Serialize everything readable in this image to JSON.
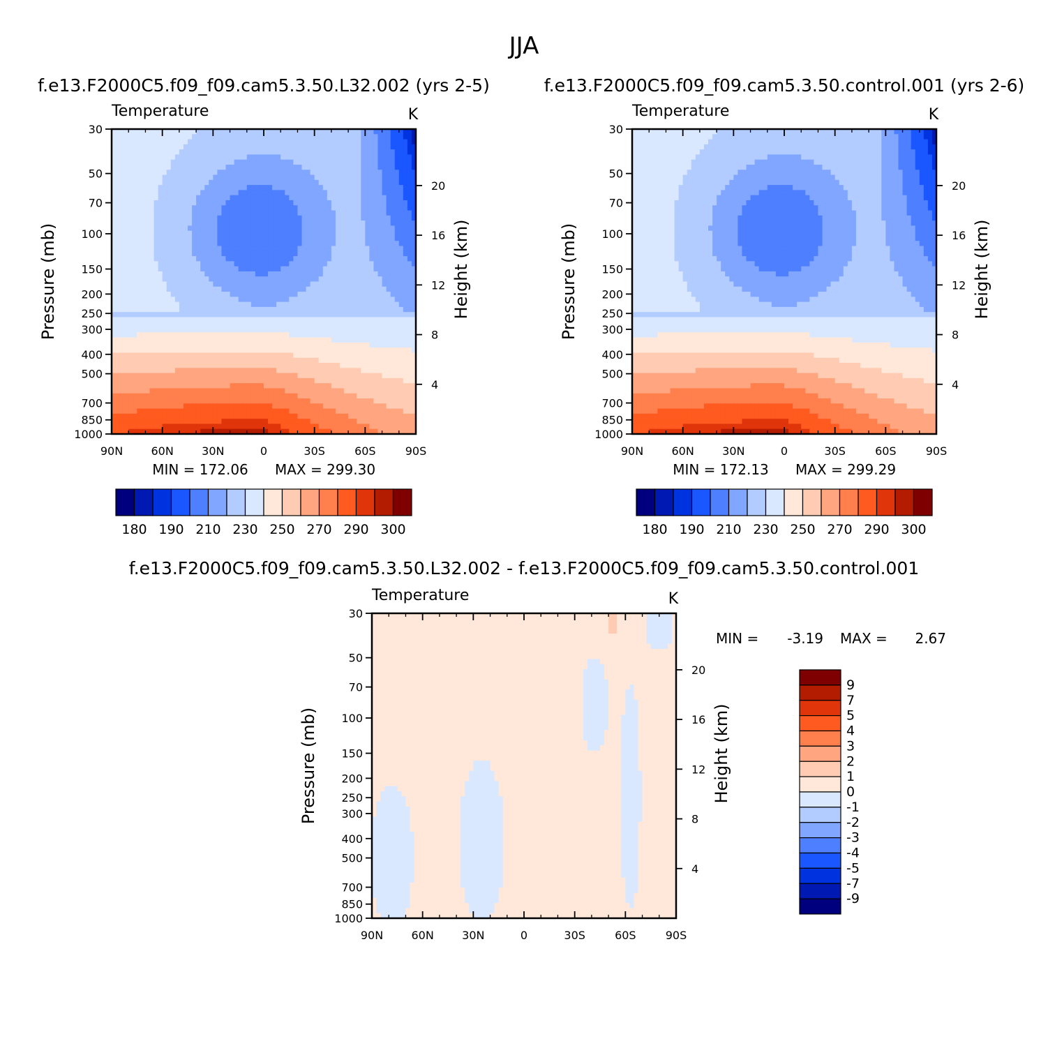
{
  "title": "JJA",
  "palette_temperature": [
    "#00007f",
    "#0019b3",
    "#0033e0",
    "#1a57ff",
    "#4d7fff",
    "#80a6ff",
    "#b3ccff",
    "#d9e8ff",
    "#ffe8d9",
    "#ffccb3",
    "#ffa680",
    "#ff7f4d",
    "#ff5a1f",
    "#e0340a",
    "#b31c00",
    "#7f0000"
  ],
  "palette_difference": [
    "#00007f",
    "#0019b3",
    "#0033e0",
    "#1a57ff",
    "#4d7fff",
    "#80a6ff",
    "#b3ccff",
    "#d9e8ff",
    "#ffe8d9",
    "#ffccb3",
    "#ffa680",
    "#ff7f4d",
    "#ff5a1f",
    "#e0340a",
    "#b31c00",
    "#7f0000"
  ],
  "chart_data": [
    {
      "type": "heatmap",
      "panel": "test",
      "title": "f.e13.F2000C5.f09_f09.cam5.3.50.L32.002 (yrs 2-5)",
      "left_label": "Temperature",
      "units": "K",
      "ylabel": "Pressure (mb)",
      "ylabel_right": "Height (km)",
      "x_ticks": [
        "90N",
        "60N",
        "30N",
        "0",
        "30S",
        "60S",
        "90S"
      ],
      "y_ticks": [
        30,
        50,
        70,
        100,
        150,
        200,
        250,
        300,
        400,
        500,
        700,
        850,
        1000
      ],
      "height_ticks": [
        4,
        8,
        12,
        16,
        20
      ],
      "xlim": [
        90,
        -90
      ],
      "ylim": [
        1000,
        30
      ],
      "min_label": "MIN = 172.06",
      "max_label": "MAX = 299.30",
      "min": 172.06,
      "max": 299.3,
      "colorbar_labels": [
        "180",
        "190",
        "210",
        "230",
        "250",
        "270",
        "290",
        "300"
      ]
    },
    {
      "type": "heatmap",
      "panel": "control",
      "title": "f.e13.F2000C5.f09_f09.cam5.3.50.control.001 (yrs 2-6)",
      "left_label": "Temperature",
      "units": "K",
      "ylabel": "Pressure (mb)",
      "ylabel_right": "Height (km)",
      "x_ticks": [
        "90N",
        "60N",
        "30N",
        "0",
        "30S",
        "60S",
        "90S"
      ],
      "y_ticks": [
        30,
        50,
        70,
        100,
        150,
        200,
        250,
        300,
        400,
        500,
        700,
        850,
        1000
      ],
      "height_ticks": [
        4,
        8,
        12,
        16,
        20
      ],
      "xlim": [
        90,
        -90
      ],
      "ylim": [
        1000,
        30
      ],
      "min_label": "MIN = 172.13",
      "max_label": "MAX = 299.29",
      "min": 172.13,
      "max": 299.29,
      "colorbar_labels": [
        "180",
        "190",
        "210",
        "230",
        "250",
        "270",
        "290",
        "300"
      ]
    },
    {
      "type": "heatmap",
      "panel": "difference",
      "title": "f.e13.F2000C5.f09_f09.cam5.3.50.L32.002 - f.e13.F2000C5.f09_f09.cam5.3.50.control.001",
      "left_label": "Temperature",
      "units": "K",
      "ylabel": "Pressure (mb)",
      "ylabel_right": "Height (km)",
      "x_ticks": [
        "90N",
        "60N",
        "30N",
        "0",
        "30S",
        "60S",
        "90S"
      ],
      "y_ticks": [
        30,
        50,
        70,
        100,
        150,
        200,
        250,
        300,
        400,
        500,
        700,
        850,
        1000
      ],
      "height_ticks": [
        4,
        8,
        12,
        16,
        20
      ],
      "xlim": [
        90,
        -90
      ],
      "ylim": [
        1000,
        30
      ],
      "min_text": "MIN =",
      "min_value": "-3.19",
      "max_text": "MAX =",
      "max_value": "2.67",
      "min": -3.19,
      "max": 2.67,
      "colorbar_labels": [
        "9",
        "7",
        "5",
        "4",
        "3",
        "2",
        "1",
        "0",
        "-1",
        "-2",
        "-3",
        "-4",
        "-5",
        "-7",
        "-9"
      ]
    }
  ]
}
